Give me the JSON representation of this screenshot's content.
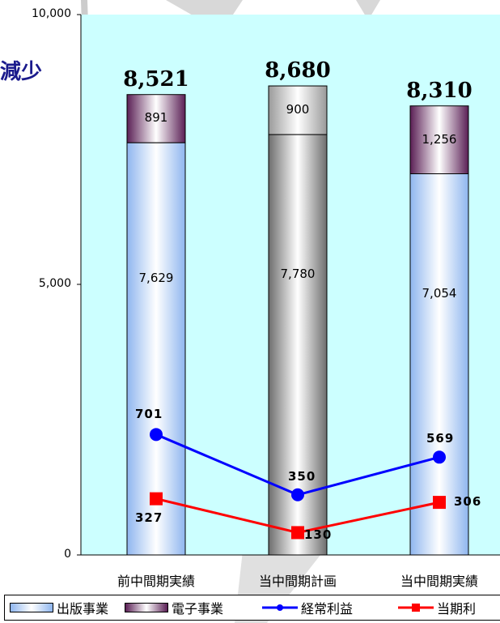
{
  "title_fragment": "減少",
  "legend": {
    "publishing": "出版事業",
    "electronic": "電子事業",
    "ordinary_profit": "経常利益",
    "net_profit": "当期利"
  },
  "colors": {
    "plot_bg": "#ccffff",
    "publishing": "#b9d4f7",
    "electronic": "#7a3a6e",
    "plan": "#9a9a9a",
    "ordinary_profit": "#0000ff",
    "net_profit": "#ff0000"
  },
  "chart_data": {
    "type": "bar",
    "stacked": true,
    "categories": [
      "前中間期実績",
      "当中間期計画",
      "当中間期実績"
    ],
    "ylim": [
      0,
      10000
    ],
    "yticks": [
      "10,000",
      "5,000",
      "0"
    ],
    "grid": false,
    "legend_position": "bottom",
    "totals": [
      "8,521",
      "8,680",
      "8,310"
    ],
    "series": [
      {
        "name": "出版事業",
        "values": [
          7629,
          7780,
          7054
        ],
        "labels": [
          "7,629",
          "7,780",
          "7,054"
        ]
      },
      {
        "name": "電子事業",
        "values": [
          891,
          900,
          1256
        ],
        "labels": [
          "891",
          "900",
          "1,256"
        ]
      },
      {
        "name": "経常利益",
        "type": "line",
        "values": [
          701,
          350,
          569
        ],
        "labels": [
          "701",
          "350",
          "569"
        ]
      },
      {
        "name": "当期利",
        "type": "line",
        "values": [
          327,
          130,
          306
        ],
        "labels": [
          "327",
          "130",
          "306"
        ]
      }
    ]
  }
}
